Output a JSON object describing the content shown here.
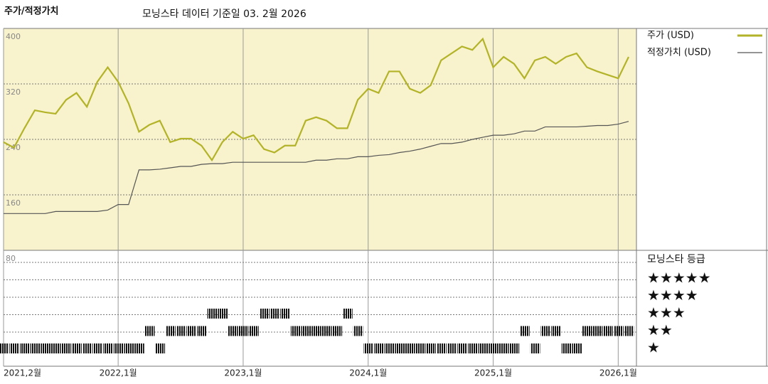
{
  "chart_data": {
    "type": "line",
    "title": "주가/적정가치",
    "subtitle": "모닝스타 데이터 기준일 03. 2월 2026",
    "x": [
      "2021-02",
      "2021-03",
      "2021-04",
      "2021-05",
      "2021-06",
      "2021-07",
      "2021-08",
      "2021-09",
      "2021-10",
      "2021-11",
      "2021-12",
      "2022-01",
      "2022-02",
      "2022-03",
      "2022-04",
      "2022-05",
      "2022-06",
      "2022-07",
      "2022-08",
      "2022-09",
      "2022-10",
      "2022-11",
      "2022-12",
      "2023-01",
      "2023-02",
      "2023-03",
      "2023-04",
      "2023-05",
      "2023-06",
      "2023-07",
      "2023-08",
      "2023-09",
      "2023-10",
      "2023-11",
      "2023-12",
      "2024-01",
      "2024-02",
      "2024-03",
      "2024-04",
      "2024-05",
      "2024-06",
      "2024-07",
      "2024-08",
      "2024-09",
      "2024-10",
      "2024-11",
      "2024-12",
      "2025-01",
      "2025-02",
      "2025-03",
      "2025-04",
      "2025-05",
      "2025-06",
      "2025-07",
      "2025-08",
      "2025-09",
      "2025-10",
      "2025-11",
      "2025-12",
      "2026-01",
      "2026-02"
    ],
    "series": [
      {
        "name": "주가 (USD)",
        "color": "#b3b32a",
        "values": [
          236,
          228,
          256,
          282,
          279,
          277,
          297,
          307,
          287,
          323,
          344,
          323,
          292,
          251,
          261,
          267,
          236,
          241,
          241,
          231,
          210,
          236,
          251,
          241,
          246,
          226,
          221,
          231,
          231,
          267,
          272,
          267,
          256,
          256,
          297,
          313,
          307,
          338,
          338,
          313,
          307,
          318,
          354,
          364,
          374,
          369,
          385,
          344,
          359,
          349,
          328,
          354,
          359,
          349,
          359,
          364,
          344,
          338,
          333,
          328,
          359
        ]
      },
      {
        "name": "적정가치 (USD)",
        "color": "#555555",
        "values": [
          133,
          133,
          133,
          133,
          133,
          136,
          136,
          136,
          136,
          136,
          138,
          146,
          146,
          196,
          196,
          197,
          199,
          201,
          201,
          204,
          205,
          205,
          207,
          207,
          207,
          207,
          207,
          207,
          207,
          207,
          210,
          210,
          212,
          212,
          215,
          215,
          217,
          218,
          221,
          223,
          226,
          230,
          234,
          234,
          236,
          240,
          243,
          246,
          246,
          248,
          252,
          252,
          258,
          258,
          258,
          258,
          259,
          260,
          260,
          262,
          266
        ]
      }
    ],
    "ylim": [
      80,
      400
    ],
    "yticks": [
      80,
      160,
      240,
      320,
      400
    ],
    "xticks": [
      {
        "value": "2021-02",
        "label": "2021,2월"
      },
      {
        "value": "2022-01",
        "label": "2022,1월"
      },
      {
        "value": "2023-01",
        "label": "2023,1월"
      },
      {
        "value": "2024-01",
        "label": "2024,1월"
      },
      {
        "value": "2025-01",
        "label": "2025,1월"
      },
      {
        "value": "2026-01",
        "label": "2026,1월"
      }
    ],
    "ratings": {
      "title": "모닝스타 등급",
      "labels": [
        "★",
        "★★",
        "★★★",
        "★★★★",
        "★★★★★"
      ],
      "values": [
        1,
        1,
        1,
        1,
        1,
        1,
        1,
        1,
        1,
        1,
        1,
        1,
        1,
        1,
        2,
        1,
        2,
        2,
        2,
        2,
        3,
        3,
        2,
        2,
        2,
        3,
        3,
        3,
        2,
        2,
        2,
        2,
        2,
        3,
        2,
        1,
        1,
        1,
        1,
        1,
        1,
        1,
        1,
        1,
        1,
        1,
        1,
        1,
        1,
        1,
        2,
        1,
        2,
        2,
        1,
        1,
        2,
        2,
        2,
        2,
        2
      ]
    }
  }
}
